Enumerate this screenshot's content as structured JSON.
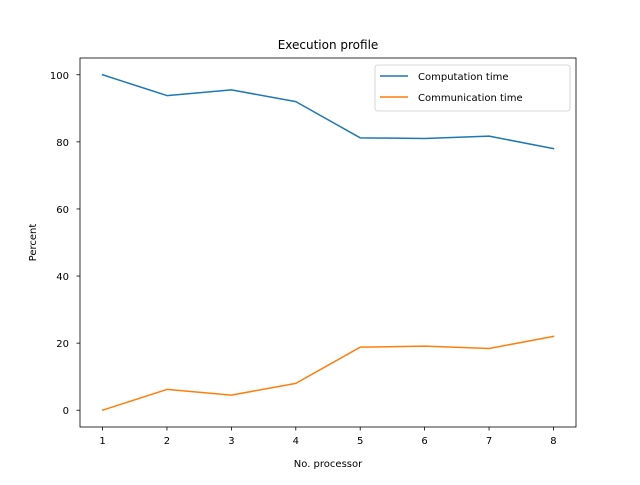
{
  "chart_data": {
    "type": "line",
    "title": "Execution profile",
    "xlabel": "No. processor",
    "ylabel": "Percent",
    "x": [
      1,
      2,
      3,
      4,
      5,
      6,
      7,
      8
    ],
    "xticks": [
      "1",
      "2",
      "3",
      "4",
      "5",
      "6",
      "7",
      "8"
    ],
    "yticks": [
      "0",
      "20",
      "40",
      "60",
      "80",
      "100"
    ],
    "xlim": [
      0.65,
      8.35
    ],
    "ylim": [
      -5,
      105
    ],
    "grid": false,
    "legend_position": "top-right",
    "series": [
      {
        "name": "Computation time",
        "color": "#1f77b4",
        "values": [
          100,
          93.8,
          95.5,
          92,
          81.2,
          81,
          81.7,
          78
        ]
      },
      {
        "name": "Communication time",
        "color": "#ff7f0e",
        "values": [
          0,
          6.2,
          4.5,
          8,
          18.8,
          19.1,
          18.4,
          22
        ]
      }
    ]
  }
}
